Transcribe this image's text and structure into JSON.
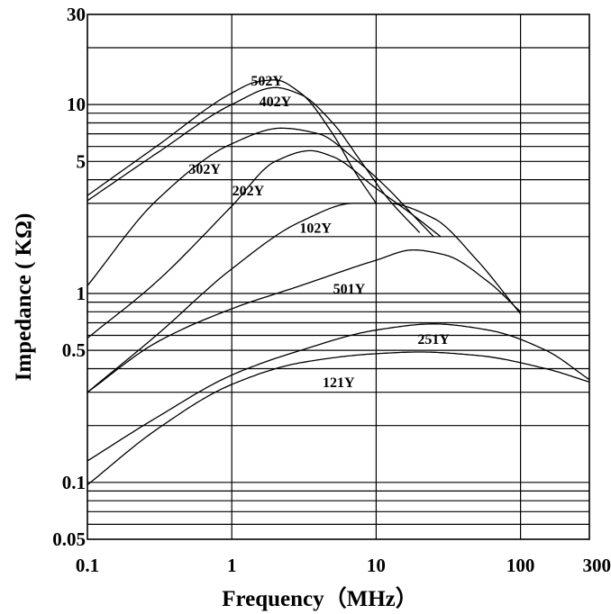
{
  "chart_data": {
    "type": "line",
    "title": "",
    "xlabel": "Frequency（MHz）",
    "ylabel": "Impedance ( KΩ)",
    "x_scale": "log",
    "y_scale": "log",
    "xlim": [
      0.1,
      300
    ],
    "ylim": [
      0.05,
      30
    ],
    "grid": true,
    "legend": "none (inline labels)",
    "x_ticks": [
      {
        "value": 0.1,
        "label": "0.1"
      },
      {
        "value": 1,
        "label": "1"
      },
      {
        "value": 10,
        "label": "10"
      },
      {
        "value": 100,
        "label": "100"
      },
      {
        "value": 300,
        "label": "300"
      }
    ],
    "y_ticks": [
      {
        "value": 0.05,
        "label": "0.05"
      },
      {
        "value": 0.1,
        "label": "0.1"
      },
      {
        "value": 0.5,
        "label": "0.5"
      },
      {
        "value": 1,
        "label": "1"
      },
      {
        "value": 5,
        "label": "5"
      },
      {
        "value": 10,
        "label": "10"
      },
      {
        "value": 30,
        "label": "30"
      }
    ],
    "y_gridlines": [
      0.06,
      0.07,
      0.08,
      0.09,
      0.1,
      0.2,
      0.3,
      0.4,
      0.5,
      0.6,
      0.7,
      0.8,
      0.9,
      1,
      2,
      3,
      4,
      5,
      6,
      7,
      8,
      9,
      10,
      20
    ],
    "x_gridlines": [
      1,
      10,
      100
    ],
    "series": [
      {
        "name": "502Y",
        "x": [
          0.1,
          0.3,
          1,
          1.5,
          2,
          3,
          5,
          7,
          10
        ],
        "y": [
          3.3,
          6.0,
          11.5,
          13.2,
          13.5,
          11.5,
          7.0,
          4.5,
          3.0
        ]
      },
      {
        "name": "402Y",
        "x": [
          0.1,
          0.3,
          1,
          2,
          3,
          5,
          8,
          12,
          20
        ],
        "y": [
          3.1,
          5.5,
          10.0,
          12.3,
          11.3,
          8.0,
          4.9,
          3.2,
          2.1
        ]
      },
      {
        "name": "302Y",
        "x": [
          0.1,
          0.3,
          1,
          2.2,
          4,
          7,
          12,
          18,
          25
        ],
        "y": [
          1.1,
          3.1,
          6.2,
          7.5,
          7.0,
          5.2,
          3.6,
          2.6,
          2.0
        ]
      },
      {
        "name": "202Y",
        "x": [
          0.1,
          0.3,
          1,
          2,
          3.5,
          5,
          10,
          18,
          28
        ],
        "y": [
          0.58,
          1.15,
          2.9,
          5.0,
          5.7,
          5.3,
          3.6,
          2.6,
          2.0
        ]
      },
      {
        "name": "102Y",
        "x": [
          0.1,
          0.3,
          1,
          3,
          7,
          12,
          25,
          50,
          100
        ],
        "y": [
          0.3,
          0.6,
          1.35,
          2.4,
          3.0,
          3.0,
          2.5,
          1.5,
          0.78
        ]
      },
      {
        "name": "501Y",
        "x": [
          0.1,
          0.3,
          1,
          3,
          10,
          18,
          30,
          60,
          100
        ],
        "y": [
          0.3,
          0.55,
          0.83,
          1.1,
          1.5,
          1.7,
          1.6,
          1.15,
          0.8
        ]
      },
      {
        "name": "251Y",
        "x": [
          0.1,
          0.3,
          1,
          3,
          10,
          25,
          60,
          150,
          300
        ],
        "y": [
          0.13,
          0.22,
          0.37,
          0.5,
          0.64,
          0.69,
          0.64,
          0.5,
          0.35
        ]
      },
      {
        "name": "121Y",
        "x": [
          0.1,
          0.3,
          1,
          3,
          10,
          20,
          50,
          150,
          300
        ],
        "y": [
          0.097,
          0.19,
          0.33,
          0.43,
          0.48,
          0.49,
          0.47,
          0.4,
          0.34
        ]
      }
    ],
    "label_anchors": [
      {
        "name": "502Y",
        "x": 1.75,
        "y": 12.6
      },
      {
        "name": "402Y",
        "x": 2.0,
        "y": 9.8
      },
      {
        "name": "302Y",
        "x": 0.65,
        "y": 4.3
      },
      {
        "name": "202Y",
        "x": 1.3,
        "y": 3.3
      },
      {
        "name": "102Y",
        "x": 3.8,
        "y": 2.1
      },
      {
        "name": "501Y",
        "x": 6.5,
        "y": 1.0
      },
      {
        "name": "251Y",
        "x": 25,
        "y": 0.54
      },
      {
        "name": "121Y",
        "x": 5.5,
        "y": 0.32
      }
    ]
  }
}
